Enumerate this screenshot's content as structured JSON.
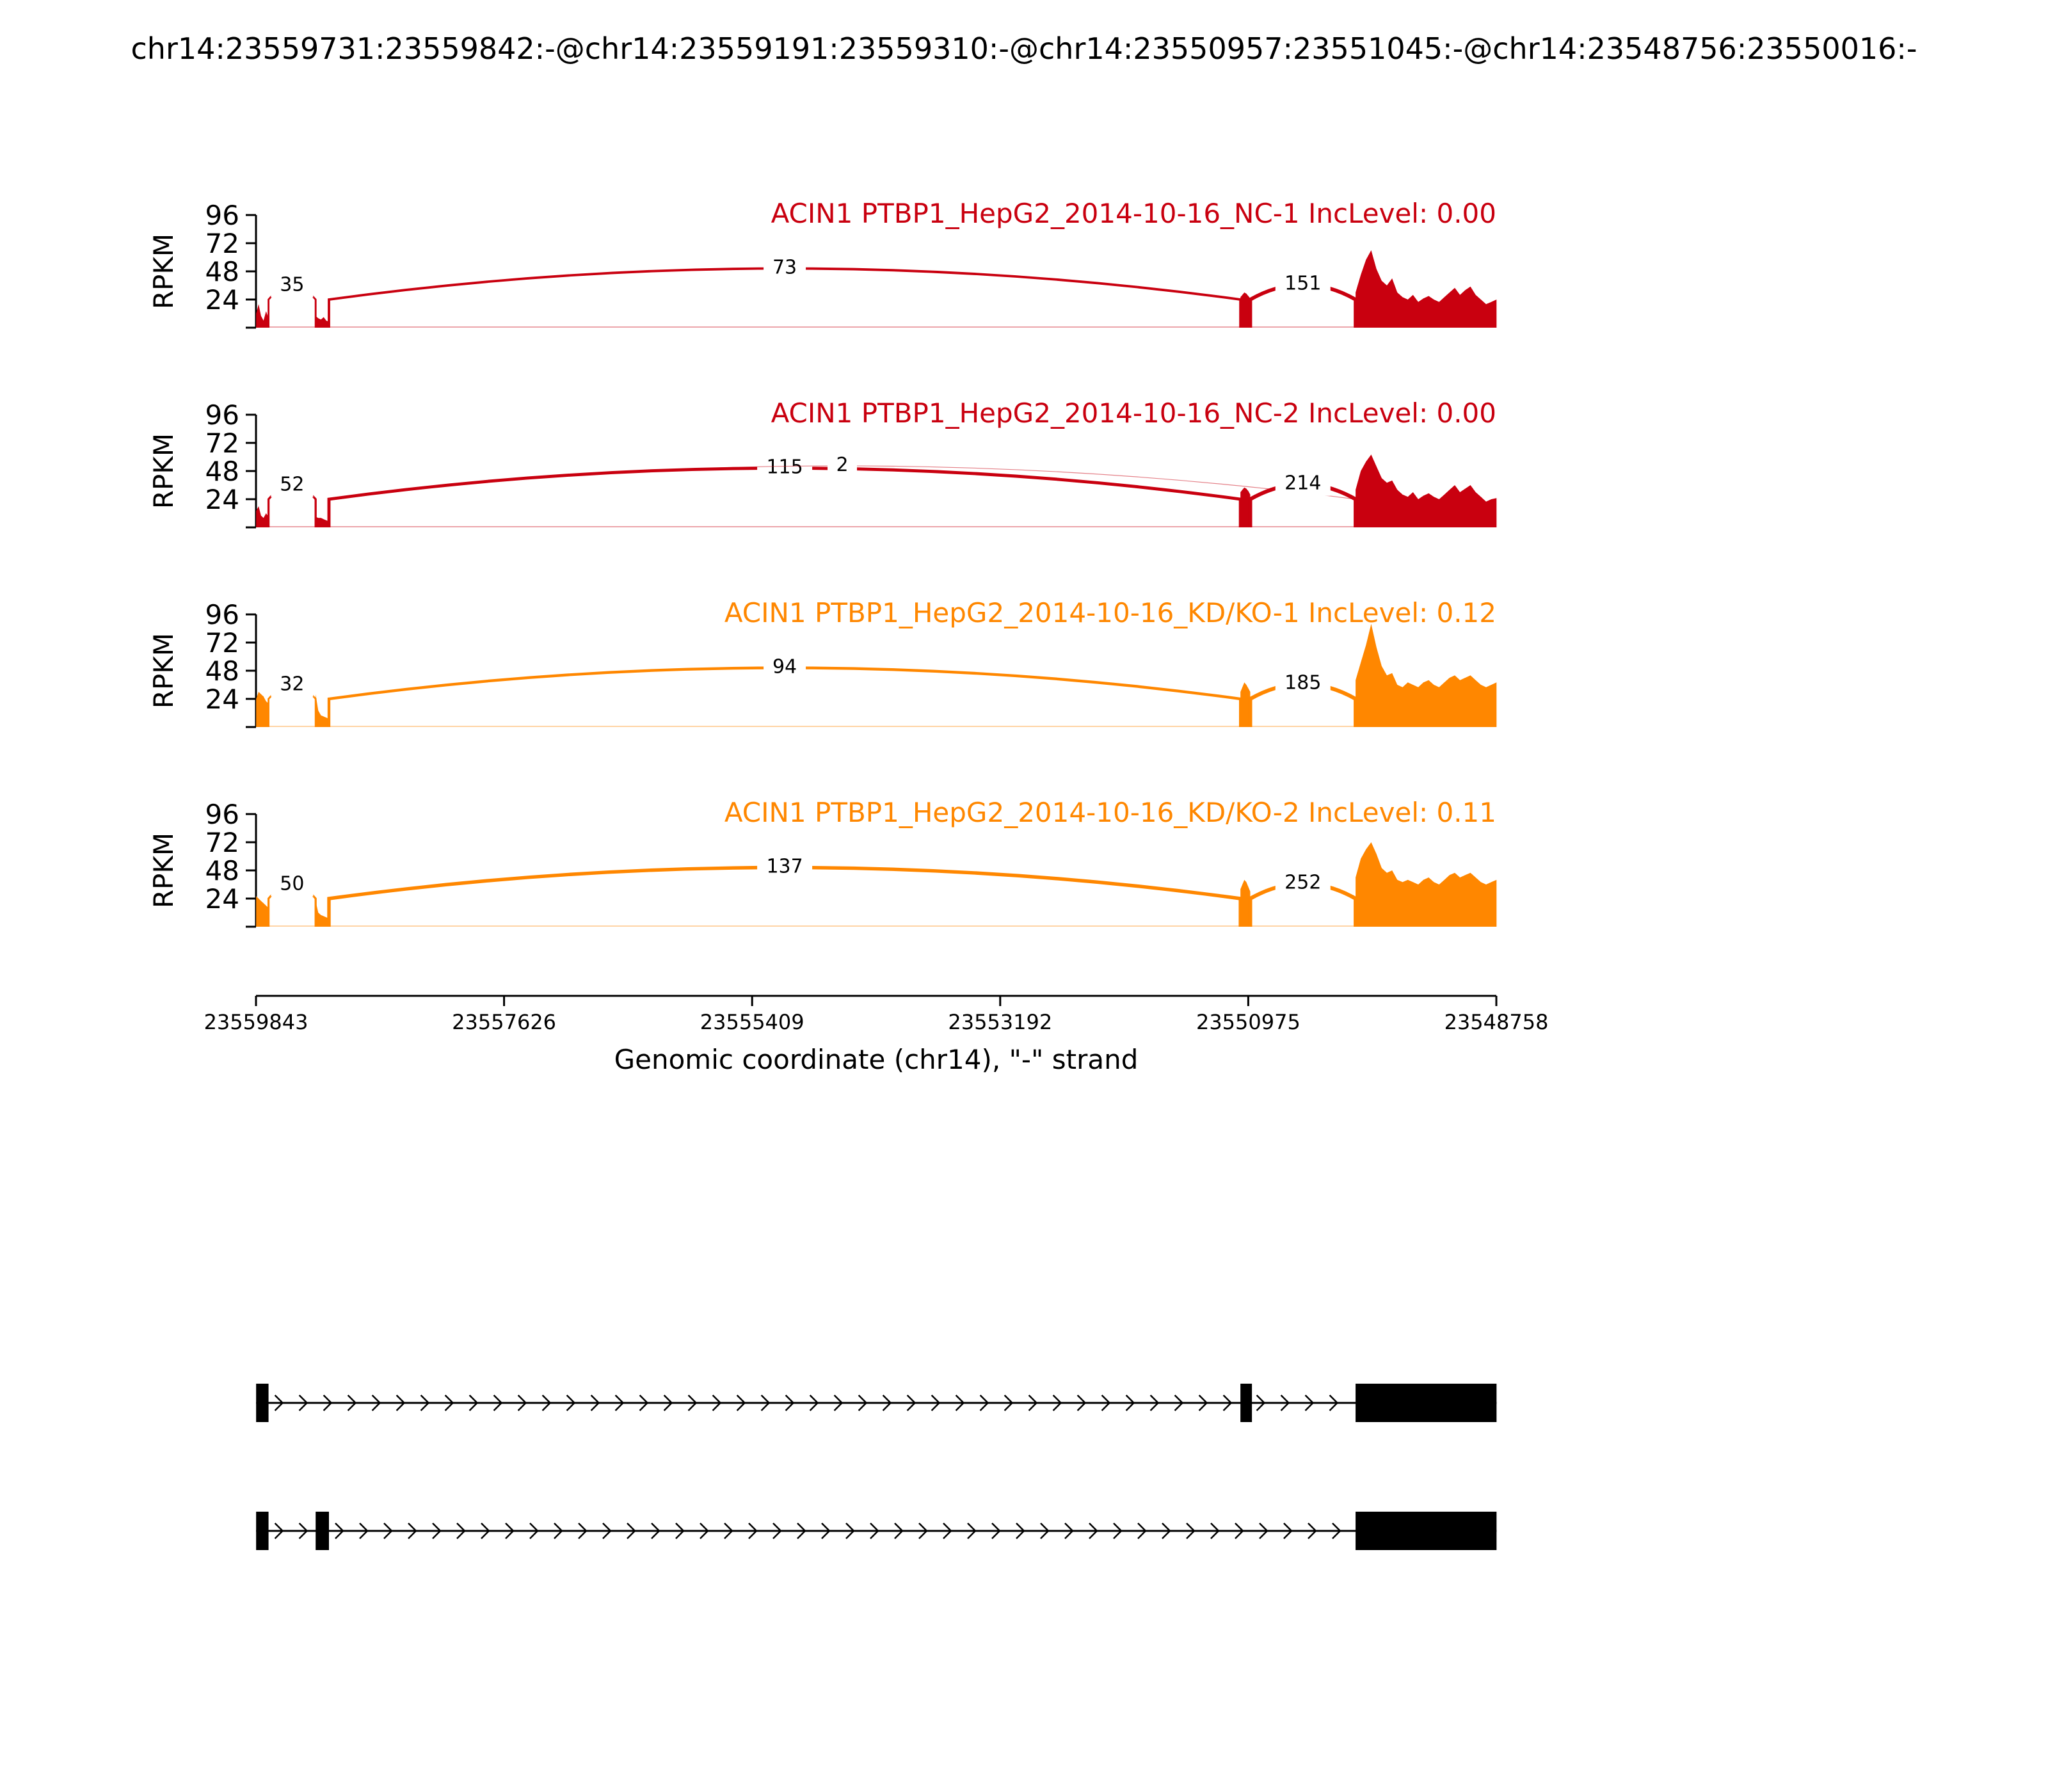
{
  "figure_title": "chr14:23559731:23559842:-@chr14:23559191:23559310:-@chr14:23550957:23551045:-@chr14:23548756:23550016:-",
  "chart_data": {
    "type": "area",
    "chart_kind": "sashimi",
    "gene": "ACIN1",
    "ylabel": "RPKM",
    "yticks": [
      24,
      48,
      72,
      96
    ],
    "ylim": [
      0,
      96
    ],
    "xlabel": "Genomic coordinate (chr14), \"-\" strand",
    "xticks": [
      23559843,
      23557626,
      23555409,
      23553192,
      23550975,
      23548758
    ],
    "xlim": [
      23559843,
      23548758
    ],
    "x_reversed": true,
    "grid": false,
    "coverage_regions": [
      [
        23559842,
        23559731
      ],
      [
        23559310,
        23559191
      ],
      [
        23551045,
        23550957
      ],
      [
        23550016,
        23548756
      ]
    ],
    "panels": [
      {
        "title": "ACIN1 PTBP1_HepG2_2014-10-16_NC-1 IncLevel: 0.00",
        "color": "#c9000f",
        "coverage": [
          {
            "region": 0,
            "values": [
              12,
              20,
              10,
              6,
              14,
              8
            ]
          },
          {
            "region": 1,
            "values": [
              10,
              8,
              7,
              9,
              6,
              5
            ]
          },
          {
            "region": 2,
            "values": [
              26,
              28,
              30,
              29,
              27,
              25
            ]
          },
          {
            "region": 3,
            "values": [
              30,
              45,
              58,
              66,
              50,
              40,
              36,
              42,
              30,
              26,
              24,
              28,
              22,
              25,
              27,
              24,
              22,
              26,
              30,
              34,
              28,
              32,
              35,
              28,
              24,
              20,
              22,
              24
            ]
          }
        ],
        "junctions": [
          {
            "start": 23559731,
            "end": 23559310,
            "count": 35
          },
          {
            "start": 23559191,
            "end": 23551045,
            "count": 73
          },
          {
            "start": 23550957,
            "end": 23550016,
            "count": 151
          }
        ]
      },
      {
        "title": "ACIN1 PTBP1_HepG2_2014-10-16_NC-2 IncLevel: 0.00",
        "color": "#c9000f",
        "coverage": [
          {
            "region": 0,
            "values": [
              14,
              18,
              10,
              8,
              12,
              9
            ]
          },
          {
            "region": 1,
            "values": [
              9,
              8,
              8,
              7,
              6,
              5
            ]
          },
          {
            "region": 2,
            "values": [
              30,
              32,
              34,
              33,
              31,
              28
            ]
          },
          {
            "region": 3,
            "values": [
              32,
              48,
              56,
              62,
              52,
              42,
              38,
              40,
              32,
              28,
              26,
              30,
              24,
              27,
              29,
              26,
              24,
              28,
              32,
              36,
              30,
              33,
              36,
              30,
              26,
              22,
              24,
              25
            ]
          }
        ],
        "junctions": [
          {
            "start": 23559731,
            "end": 23559310,
            "count": 52
          },
          {
            "start": 23559191,
            "end": 23551045,
            "count": 115
          },
          {
            "start": 23559191,
            "end": 23550016,
            "count": 2
          },
          {
            "start": 23550957,
            "end": 23550016,
            "count": 214
          }
        ]
      },
      {
        "title": "ACIN1 PTBP1_HepG2_2014-10-16_KD/KO-1 IncLevel: 0.12",
        "color": "#ff8700",
        "coverage": [
          {
            "region": 0,
            "values": [
              24,
              30,
              28,
              26,
              22,
              20
            ]
          },
          {
            "region": 1,
            "values": [
              28,
              14,
              10,
              9,
              8,
              7
            ]
          },
          {
            "region": 2,
            "values": [
              30,
              34,
              38,
              36,
              33,
              30
            ]
          },
          {
            "region": 3,
            "values": [
              40,
              55,
              70,
              88,
              68,
              52,
              44,
              46,
              36,
              34,
              38,
              36,
              34,
              38,
              40,
              36,
              34,
              38,
              42,
              44,
              40,
              42,
              44,
              40,
              36,
              34,
              36,
              38
            ]
          }
        ],
        "junctions": [
          {
            "start": 23559731,
            "end": 23559310,
            "count": 32
          },
          {
            "start": 23559191,
            "end": 23551045,
            "count": 94
          },
          {
            "start": 23550957,
            "end": 23550016,
            "count": 185
          }
        ]
      },
      {
        "title": "ACIN1 PTBP1_HepG2_2014-10-16_KD/KO-2 IncLevel: 0.11",
        "color": "#ff8700",
        "coverage": [
          {
            "region": 0,
            "values": [
              26,
              24,
              22,
              20,
              18,
              16
            ]
          },
          {
            "region": 1,
            "values": [
              22,
              12,
              10,
              9,
              8,
              7
            ]
          },
          {
            "region": 2,
            "values": [
              32,
              36,
              40,
              38,
              34,
              30
            ]
          },
          {
            "region": 3,
            "values": [
              42,
              58,
              66,
              72,
              62,
              50,
              46,
              48,
              40,
              38,
              40,
              38,
              36,
              40,
              42,
              38,
              36,
              40,
              44,
              46,
              42,
              44,
              46,
              42,
              38,
              36,
              38,
              40
            ]
          }
        ],
        "junctions": [
          {
            "start": 23559731,
            "end": 23559310,
            "count": 50
          },
          {
            "start": 23559191,
            "end": 23551045,
            "count": 137
          },
          {
            "start": 23550957,
            "end": 23550016,
            "count": 252
          }
        ]
      }
    ],
    "isoforms": [
      {
        "exons": [
          [
            23559842,
            23559731
          ],
          [
            23551045,
            23550957
          ],
          [
            23550016,
            23548756
          ]
        ]
      },
      {
        "exons": [
          [
            23559842,
            23559731
          ],
          [
            23559310,
            23559191
          ],
          [
            23550016,
            23548756
          ]
        ]
      }
    ]
  }
}
